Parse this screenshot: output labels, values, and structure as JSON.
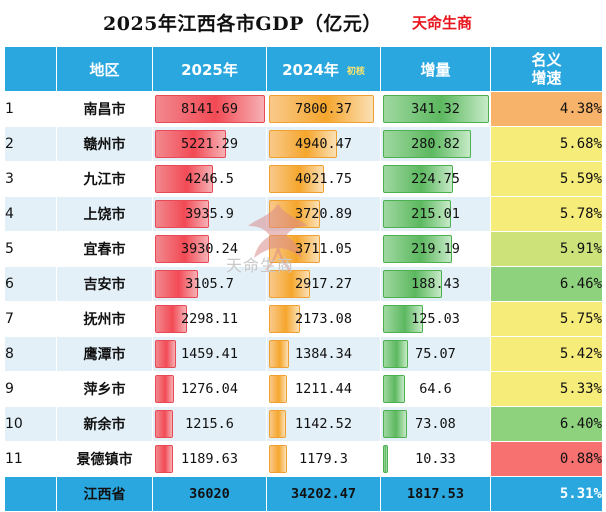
{
  "header": {
    "title": "2025年江西各市GDP（亿元）",
    "brand": "天命生商"
  },
  "columns": {
    "region": "地区",
    "y2025": "2025年",
    "y2024": "2024年",
    "y2024_tag": "初核",
    "increase": "增量",
    "growth_line1": "名义",
    "growth_line2": "增速"
  },
  "watermark": {
    "text": "天命生商",
    "small_text": "天命生商"
  },
  "colors": {
    "header_blue": "#2aa7df",
    "bar_2025": "#f24a55",
    "bar_2024": "#f5a62c",
    "bar_increase": "#5cb85f",
    "rate_low": "#f87171",
    "rate_mid": "#f6ec7a",
    "rate_high": "#8fd27d",
    "brand_red": "#e8141c"
  },
  "chart_data": {
    "type": "table",
    "title": "2025年江西各市GDP（亿元）",
    "columns": [
      "地区",
      "2025年",
      "2024年",
      "增量",
      "名义增速"
    ],
    "rows": [
      {
        "rank": "1",
        "city": "南昌市",
        "y2025": 8141.69,
        "y2024": 7800.37,
        "increase": 341.32,
        "growth": "4.38%",
        "growth_value": 4.38,
        "y2025_text": "8141.69",
        "y2024_text": "7800.37",
        "increase_text": "341.32"
      },
      {
        "rank": "2",
        "city": "赣州市",
        "y2025": 5221.29,
        "y2024": 4940.47,
        "increase": 280.82,
        "growth": "5.68%",
        "growth_value": 5.68,
        "y2025_text": "5221.29",
        "y2024_text": "4940.47",
        "increase_text": "280.82"
      },
      {
        "rank": "3",
        "city": "九江市",
        "y2025": 4246.5,
        "y2024": 4021.75,
        "increase": 224.75,
        "growth": "5.59%",
        "growth_value": 5.59,
        "y2025_text": "4246.5",
        "y2024_text": "4021.75",
        "increase_text": "224.75"
      },
      {
        "rank": "4",
        "city": "上饶市",
        "y2025": 3935.9,
        "y2024": 3720.89,
        "increase": 215.01,
        "growth": "5.78%",
        "growth_value": 5.78,
        "y2025_text": "3935.9",
        "y2024_text": "3720.89",
        "increase_text": "215.01"
      },
      {
        "rank": "5",
        "city": "宜春市",
        "y2025": 3930.24,
        "y2024": 3711.05,
        "increase": 219.19,
        "growth": "5.91%",
        "growth_value": 5.91,
        "y2025_text": "3930.24",
        "y2024_text": "3711.05",
        "increase_text": "219.19"
      },
      {
        "rank": "6",
        "city": "吉安市",
        "y2025": 3105.7,
        "y2024": 2917.27,
        "increase": 188.43,
        "growth": "6.46%",
        "growth_value": 6.46,
        "y2025_text": "3105.7",
        "y2024_text": "2917.27",
        "increase_text": "188.43"
      },
      {
        "rank": "7",
        "city": "抚州市",
        "y2025": 2298.11,
        "y2024": 2173.08,
        "increase": 125.03,
        "growth": "5.75%",
        "growth_value": 5.75,
        "y2025_text": "2298.11",
        "y2024_text": "2173.08",
        "increase_text": "125.03"
      },
      {
        "rank": "8",
        "city": "鹰潭市",
        "y2025": 1459.41,
        "y2024": 1384.34,
        "increase": 75.07,
        "growth": "5.42%",
        "growth_value": 5.42,
        "y2025_text": "1459.41",
        "y2024_text": "1384.34",
        "increase_text": "75.07"
      },
      {
        "rank": "9",
        "city": "萍乡市",
        "y2025": 1276.04,
        "y2024": 1211.44,
        "increase": 64.6,
        "growth": "5.33%",
        "growth_value": 5.33,
        "y2025_text": "1276.04",
        "y2024_text": "1211.44",
        "increase_text": "64.6"
      },
      {
        "rank": "10",
        "city": "新余市",
        "y2025": 1215.6,
        "y2024": 1142.52,
        "increase": 73.08,
        "growth": "6.40%",
        "growth_value": 6.4,
        "y2025_text": "1215.6",
        "y2024_text": "1142.52",
        "increase_text": "73.08"
      },
      {
        "rank": "11",
        "city": "景德镇市",
        "y2025": 1189.63,
        "y2024": 1179.3,
        "increase": 10.33,
        "growth": "0.88%",
        "growth_value": 0.88,
        "y2025_text": "1189.63",
        "y2024_text": "1179.3",
        "increase_text": "10.33"
      }
    ],
    "total": {
      "city": "江西省",
      "y2025": "36020",
      "y2024": "34202.47",
      "increase": "1817.53",
      "growth": "5.31%"
    }
  }
}
